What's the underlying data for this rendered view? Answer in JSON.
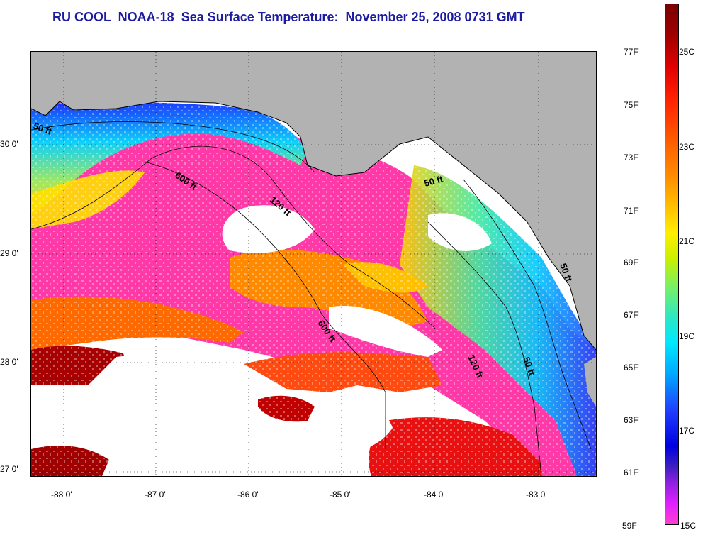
{
  "title": "RU COOL  NOAA-18  Sea Surface Temperature:  November 25, 2008 0731 GMT",
  "map": {
    "lat_labels": [
      "30 0'",
      "29 0'",
      "28 0'",
      "27 0'"
    ],
    "lon_labels": [
      "-88 0'",
      "-87 0'",
      "-86 0'",
      "-85 0'",
      "-84 0'",
      "-83 0'"
    ],
    "contour_labels": [
      "50 ft",
      "600 ft",
      "120 ft",
      "50 ft",
      "600 ft",
      "120 ft",
      "50 ft",
      "50 ft"
    ]
  },
  "colorbar": {
    "fahrenheit": [
      "77F",
      "75F",
      "73F",
      "71F",
      "69F",
      "67F",
      "65F",
      "63F",
      "61F",
      "59F"
    ],
    "celsius": [
      "25C",
      "23C",
      "21C",
      "19C",
      "17C",
      "15C"
    ]
  },
  "colors": {
    "land": "#b2b2b2",
    "cloud": "#ffffff",
    "title": "#1c1ca0",
    "cold_magenta": "#ff3aa8"
  }
}
